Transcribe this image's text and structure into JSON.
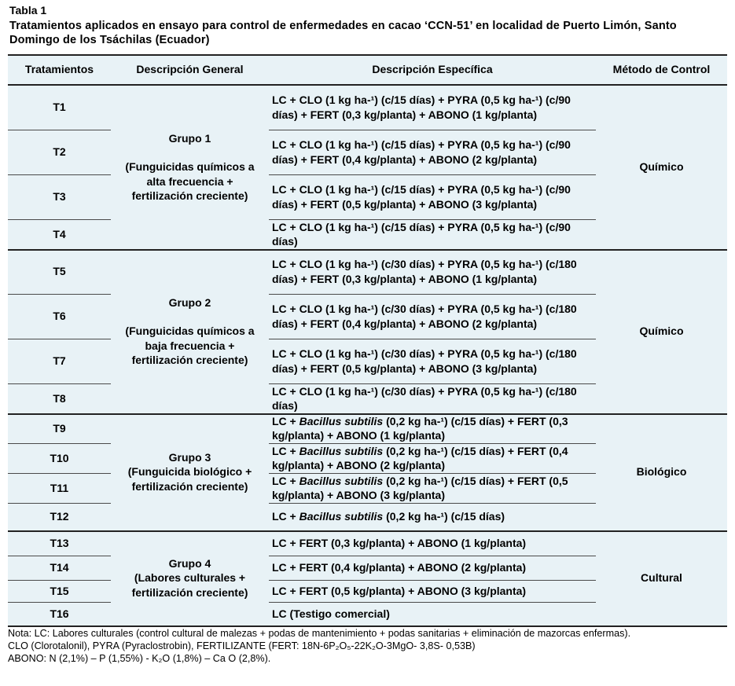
{
  "caption": {
    "label": "Tabla 1",
    "text": "Tratamientos aplicados en ensayo para control de enfermedades en cacao ‘CCN-51’ en localidad de Puerto Limón, Santo Domingo de los Tsáchilas (Ecuador)"
  },
  "headers": {
    "col1": "Tratamientos",
    "col2": "Descripción General",
    "col3": "Descripción Específica",
    "col4": "Método de Control"
  },
  "rows": [
    {
      "t": "T1",
      "desc": "LC + CLO (1 kg ha-¹) (c/15 días) + PYRA (0,5 kg ha-¹) (c/90 días) + FERT (0,3 kg/planta) + ABONO (1 kg/planta)"
    },
    {
      "t": "T2",
      "desc": "LC + CLO (1 kg ha-¹) (c/15 días) + PYRA (0,5 kg ha-¹) (c/90 días) + FERT (0,4 kg/planta) + ABONO (2 kg/planta)"
    },
    {
      "t": "T3",
      "desc": "LC + CLO (1 kg ha-¹) (c/15 días) + PYRA (0,5 kg ha-¹) (c/90 días) + FERT (0,5 kg/planta) + ABONO (3 kg/planta)"
    },
    {
      "t": "T4",
      "desc": "LC + CLO (1 kg ha-¹) (c/15 días) + PYRA (0,5 kg ha-¹) (c/90 días)"
    },
    {
      "t": "T5",
      "desc": "LC + CLO (1 kg ha-¹) (c/30 días) + PYRA (0,5 kg ha-¹) (c/180 días) + FERT (0,3 kg/planta) + ABONO (1 kg/planta)"
    },
    {
      "t": "T6",
      "desc": "LC + CLO (1 kg ha-¹) (c/30 días) + PYRA (0,5 kg ha-¹) (c/180 días) + FERT (0,4 kg/planta) + ABONO (2 kg/planta)"
    },
    {
      "t": "T7",
      "desc": "LC + CLO (1 kg ha-¹) (c/30 días) + PYRA (0,5 kg ha-¹) (c/180 días) + FERT (0,5 kg/planta) + ABONO (3 kg/planta)"
    },
    {
      "t": "T8",
      "desc": "LC + CLO (1 kg ha-¹) (c/30 días) + PYRA (0,5 kg ha-¹) (c/180 días)"
    },
    {
      "t": "T9",
      "desc_pre": "LC + ",
      "desc_it": "Bacillus subtilis",
      "desc_post": " (0,2 kg ha-¹) (c/15 días) + FERT (0,3 kg/planta) + ABONO (1 kg/planta)"
    },
    {
      "t": "T10",
      "desc_pre": "LC + ",
      "desc_it": "Bacillus subtilis",
      "desc_post": " (0,2 kg ha-¹) (c/15 días) + FERT (0,4 kg/planta) + ABONO (2 kg/planta)"
    },
    {
      "t": "T11",
      "desc_pre": "LC + ",
      "desc_it": "Bacillus subtilis",
      "desc_post": " (0,2 kg ha-¹) (c/15 días) + FERT (0,5 kg/planta) + ABONO (3 kg/planta)"
    },
    {
      "t": "T12",
      "desc_pre": "LC + ",
      "desc_it": "Bacillus subtilis",
      "desc_post": " (0,2 kg ha-¹) (c/15 días)"
    },
    {
      "t": "T13",
      "desc": "LC + FERT (0,3 kg/planta) + ABONO (1 kg/planta)"
    },
    {
      "t": "T14",
      "desc": "LC + FERT (0,4 kg/planta) + ABONO (2 kg/planta)"
    },
    {
      "t": "T15",
      "desc": "LC + FERT (0,5 kg/planta) + ABONO (3 kg/planta)"
    },
    {
      "t": "T16",
      "desc": "LC (Testigo comercial)"
    }
  ],
  "groups": [
    {
      "name": "Grupo 1",
      "detail": "(Funguicidas químicos a alta frecuencia + fertilización creciente)",
      "method": "Químico"
    },
    {
      "name": "Grupo 2",
      "detail": "(Funguicidas químicos a baja frecuencia + fertilización creciente)",
      "method": "Químico"
    },
    {
      "name": "Grupo 3",
      "detail": "(Funguicida biológico + fertilización creciente)",
      "method": "Biológico"
    },
    {
      "name": "Grupo 4",
      "detail": "(Labores culturales + fertilización creciente)",
      "method": "Cultural"
    }
  ],
  "notes": [
    "Nota: LC: Labores culturales (control cultural de malezas + podas de mantenimiento + podas sanitarias + eliminación de mazorcas enfermas).",
    "CLO (Clorotalonil), PYRA (Pyraclostrobin), FERTILIZANTE (FERT: 18N-6P₂O₅-22K₂O-3MgO- 3,8S- 0,53B)",
    "ABONO: N (2,1%) – P (1,55%) - K₂O (1,8%) – Ca O (2,8%)."
  ],
  "colors": {
    "table_bg": "#e8f2f6",
    "rule": "#4a4a4a"
  }
}
